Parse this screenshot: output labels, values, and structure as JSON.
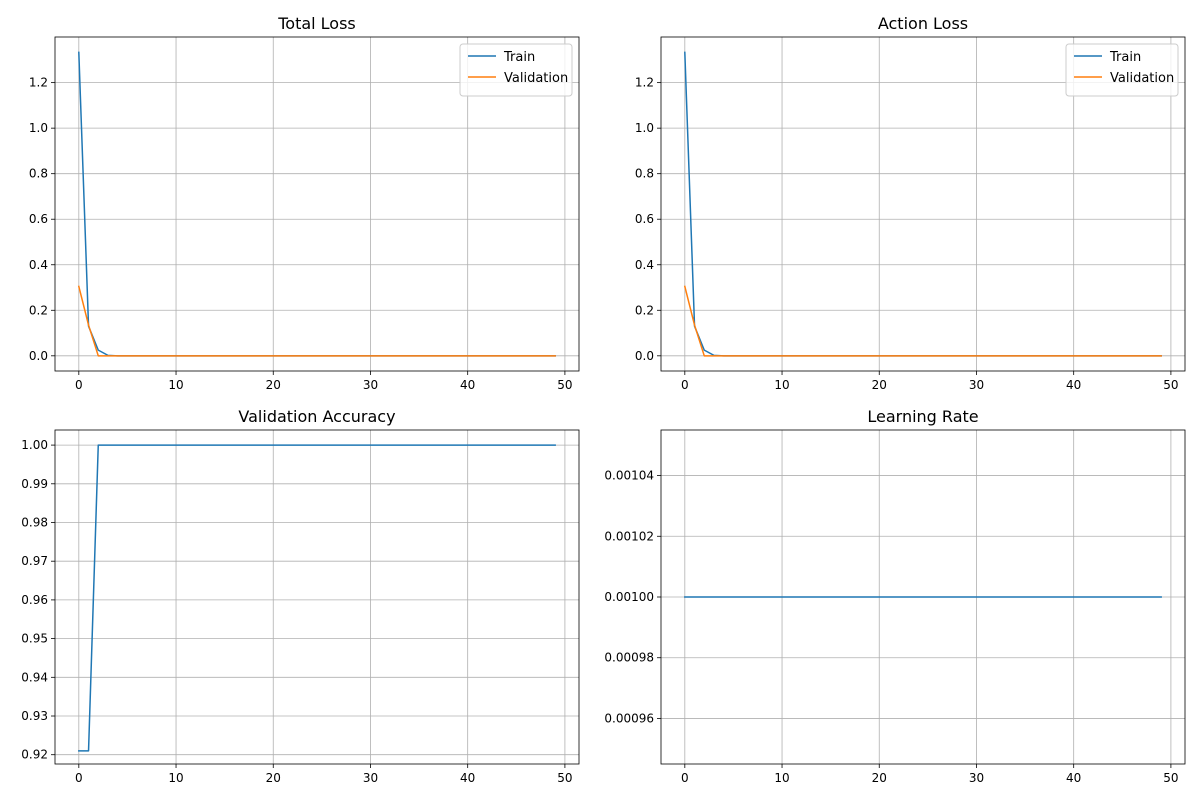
{
  "chart_data": [
    {
      "type": "line",
      "title": "Total Loss",
      "xlabel": "",
      "ylabel": "",
      "xlim": [
        -2.45,
        51.45
      ],
      "ylim": [
        -0.0667,
        1.4004
      ],
      "xticks": [
        0,
        10,
        20,
        30,
        40,
        50
      ],
      "xtick_labels": [
        "0",
        "10",
        "20",
        "30",
        "40",
        "50"
      ],
      "yticks": [
        0.0,
        0.2,
        0.4,
        0.6,
        0.8,
        1.0,
        1.2
      ],
      "ytick_labels": [
        "0.0",
        "0.2",
        "0.4",
        "0.6",
        "0.8",
        "1.0",
        "1.2"
      ],
      "grid": true,
      "legend": "upper right",
      "series": [
        {
          "name": "Train",
          "color": "#1f77b4",
          "x": [
            0,
            1,
            2,
            3,
            4,
            49
          ],
          "y": [
            1.333,
            0.13,
            0.025,
            0.002,
            0.0,
            0.0
          ]
        },
        {
          "name": "Validation",
          "color": "#ff7f0e",
          "x": [
            0,
            1,
            2,
            3,
            49
          ],
          "y": [
            0.305,
            0.135,
            0.0,
            0.0,
            0.0
          ]
        }
      ]
    },
    {
      "type": "line",
      "title": "Action Loss",
      "xlabel": "",
      "ylabel": "",
      "xlim": [
        -2.45,
        51.45
      ],
      "ylim": [
        -0.0667,
        1.4004
      ],
      "xticks": [
        0,
        10,
        20,
        30,
        40,
        50
      ],
      "xtick_labels": [
        "0",
        "10",
        "20",
        "30",
        "40",
        "50"
      ],
      "yticks": [
        0.0,
        0.2,
        0.4,
        0.6,
        0.8,
        1.0,
        1.2
      ],
      "ytick_labels": [
        "0.0",
        "0.2",
        "0.4",
        "0.6",
        "0.8",
        "1.0",
        "1.2"
      ],
      "grid": true,
      "legend": "upper right",
      "series": [
        {
          "name": "Train",
          "color": "#1f77b4",
          "x": [
            0,
            1,
            2,
            3,
            4,
            49
          ],
          "y": [
            1.333,
            0.13,
            0.025,
            0.002,
            0.0,
            0.0
          ]
        },
        {
          "name": "Validation",
          "color": "#ff7f0e",
          "x": [
            0,
            1,
            2,
            3,
            49
          ],
          "y": [
            0.305,
            0.135,
            0.0,
            0.0,
            0.0
          ]
        }
      ]
    },
    {
      "type": "line",
      "title": "Validation Accuracy",
      "xlabel": "",
      "ylabel": "",
      "xlim": [
        -2.45,
        51.45
      ],
      "ylim": [
        0.9176,
        1.0039
      ],
      "xticks": [
        0,
        10,
        20,
        30,
        40,
        50
      ],
      "xtick_labels": [
        "0",
        "10",
        "20",
        "30",
        "40",
        "50"
      ],
      "yticks": [
        0.92,
        0.93,
        0.94,
        0.95,
        0.96,
        0.97,
        0.98,
        0.99,
        1.0
      ],
      "ytick_labels": [
        "0.92",
        "0.93",
        "0.94",
        "0.95",
        "0.96",
        "0.97",
        "0.98",
        "0.99",
        "1.00"
      ],
      "grid": true,
      "legend": "",
      "series": [
        {
          "name": "",
          "color": "#1f77b4",
          "x": [
            0,
            1,
            2,
            49
          ],
          "y": [
            0.921,
            0.921,
            1.0,
            1.0
          ]
        }
      ]
    },
    {
      "type": "line",
      "title": "Learning Rate",
      "xlabel": "",
      "ylabel": "",
      "xlim": [
        -2.45,
        51.45
      ],
      "ylim": [
        0.000945,
        0.001055
      ],
      "xticks": [
        0,
        10,
        20,
        30,
        40,
        50
      ],
      "xtick_labels": [
        "0",
        "10",
        "20",
        "30",
        "40",
        "50"
      ],
      "yticks": [
        0.00096,
        0.00098,
        0.001,
        0.00102,
        0.00104
      ],
      "ytick_labels": [
        "0.00096",
        "0.00098",
        "0.00100",
        "0.00102",
        "0.00104"
      ],
      "grid": true,
      "legend": "",
      "series": [
        {
          "name": "",
          "color": "#1f77b4",
          "x": [
            0,
            49
          ],
          "y": [
            0.001,
            0.001
          ]
        }
      ]
    }
  ]
}
